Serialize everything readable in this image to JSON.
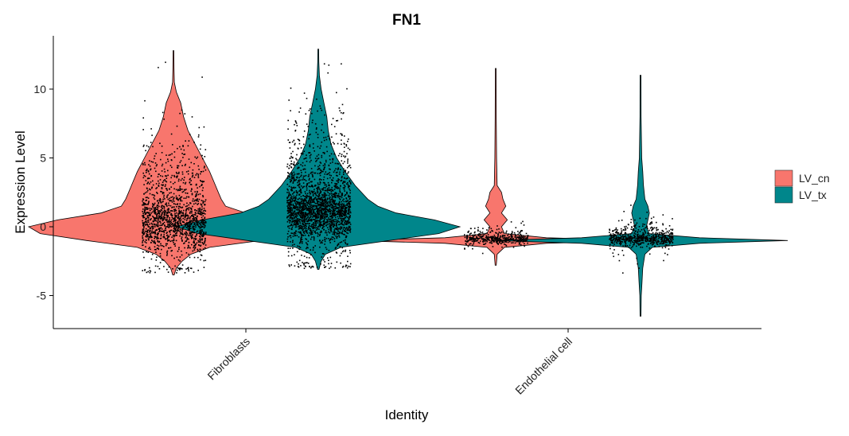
{
  "chart_data": {
    "type": "violin",
    "title": "FN1",
    "xlabel": "Identity",
    "ylabel": "Expression Level",
    "ylim": [
      -7.5,
      14
    ],
    "yticks": [
      -5,
      0,
      5,
      10
    ],
    "categories": [
      "Fibroblasts",
      "Endothelial cell"
    ],
    "legend": {
      "position": "right",
      "entries": [
        {
          "name": "LV_cn",
          "color": "#F8766D"
        },
        {
          "name": "LV_tx",
          "color": "#00868B"
        }
      ]
    },
    "series": [
      {
        "name": "LV_cn",
        "color": "#F8766D",
        "violins": [
          {
            "category": "Fibroblasts",
            "min": -3.5,
            "max": 12.8,
            "density": [
              [
                -3.5,
                0.005
              ],
              [
                -3.0,
                0.02
              ],
              [
                -2.5,
                0.06
              ],
              [
                -2.0,
                0.12
              ],
              [
                -1.5,
                0.25
              ],
              [
                -1.0,
                0.6
              ],
              [
                -0.5,
                0.92
              ],
              [
                0.0,
                1.0
              ],
              [
                0.5,
                0.8
              ],
              [
                1.0,
                0.5
              ],
              [
                1.5,
                0.36
              ],
              [
                2.0,
                0.33
              ],
              [
                2.5,
                0.31
              ],
              [
                3.0,
                0.29
              ],
              [
                4.0,
                0.25
              ],
              [
                5.0,
                0.2
              ],
              [
                6.0,
                0.15
              ],
              [
                7.0,
                0.1
              ],
              [
                8.0,
                0.07
              ],
              [
                9.0,
                0.05
              ],
              [
                9.8,
                0.02
              ],
              [
                10.5,
                0.006
              ],
              [
                11.5,
                0.004
              ],
              [
                12.8,
                0.003
              ]
            ],
            "jitter": {
              "n": 1500,
              "center": 0.0,
              "spread": 2.2,
              "min": -3.3,
              "max": 12.7
            }
          },
          {
            "category": "Endothelial cell",
            "min": -2.8,
            "max": 11.5,
            "density": [
              [
                -2.8,
                0.004
              ],
              [
                -2.0,
                0.01
              ],
              [
                -1.5,
                0.06
              ],
              [
                -1.2,
                0.35
              ],
              [
                -1.0,
                1.0
              ],
              [
                -0.8,
                0.35
              ],
              [
                -0.5,
                0.06
              ],
              [
                0.0,
                0.04
              ],
              [
                0.5,
                0.08
              ],
              [
                1.0,
                0.04
              ],
              [
                1.5,
                0.07
              ],
              [
                2.0,
                0.05
              ],
              [
                2.5,
                0.04
              ],
              [
                3.0,
                0.01
              ],
              [
                5.0,
                0.006
              ],
              [
                8.0,
                0.004
              ],
              [
                11.5,
                0.003
              ]
            ],
            "jitter": {
              "n": 420,
              "center": -0.9,
              "spread": 0.35,
              "min": -2.8,
              "max": 11.5
            }
          }
        ]
      },
      {
        "name": "LV_tx",
        "color": "#00868B",
        "violins": [
          {
            "category": "Fibroblasts",
            "min": -3.1,
            "max": 12.9,
            "density": [
              [
                -3.1,
                0.005
              ],
              [
                -2.5,
                0.02
              ],
              [
                -2.0,
                0.05
              ],
              [
                -1.5,
                0.16
              ],
              [
                -1.0,
                0.5
              ],
              [
                -0.5,
                0.85
              ],
              [
                0.0,
                1.0
              ],
              [
                0.5,
                0.82
              ],
              [
                1.0,
                0.55
              ],
              [
                1.5,
                0.42
              ],
              [
                2.0,
                0.35
              ],
              [
                3.0,
                0.26
              ],
              [
                4.0,
                0.19
              ],
              [
                5.0,
                0.13
              ],
              [
                6.0,
                0.09
              ],
              [
                7.0,
                0.07
              ],
              [
                8.0,
                0.06
              ],
              [
                9.0,
                0.04
              ],
              [
                10.0,
                0.02
              ],
              [
                11.0,
                0.008
              ],
              [
                12.0,
                0.004
              ],
              [
                12.9,
                0.003
              ]
            ],
            "jitter": {
              "n": 2200,
              "center": 0.8,
              "spread": 2.4,
              "min": -3.0,
              "max": 12.8
            }
          },
          {
            "category": "Endothelial cell",
            "min": -6.5,
            "max": 11.0,
            "density": [
              [
                -6.5,
                0.003
              ],
              [
                -5.0,
                0.005
              ],
              [
                -4.0,
                0.01
              ],
              [
                -3.0,
                0.015
              ],
              [
                -2.0,
                0.03
              ],
              [
                -1.5,
                0.08
              ],
              [
                -1.2,
                0.4
              ],
              [
                -1.0,
                1.0
              ],
              [
                -0.8,
                0.4
              ],
              [
                -0.5,
                0.06
              ],
              [
                0.0,
                0.04
              ],
              [
                0.5,
                0.05
              ],
              [
                1.0,
                0.06
              ],
              [
                1.5,
                0.05
              ],
              [
                2.0,
                0.03
              ],
              [
                3.0,
                0.02
              ],
              [
                4.0,
                0.015
              ],
              [
                5.0,
                0.008
              ],
              [
                8.0,
                0.004
              ],
              [
                11.0,
                0.003
              ]
            ],
            "jitter": {
              "n": 620,
              "center": -0.9,
              "spread": 0.5,
              "min": -6.4,
              "max": 11.0
            }
          }
        ]
      }
    ]
  }
}
